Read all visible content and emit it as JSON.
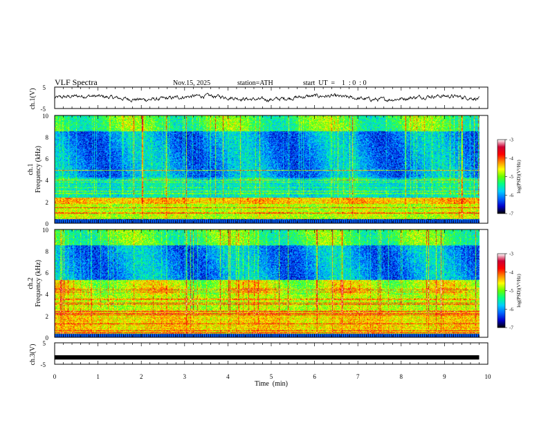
{
  "header": {
    "title": "VLF  Spectra",
    "date": "Nov.15, 2025",
    "station": "station=ATH",
    "start_ut": "start  UT  =    1  : 0  : 0"
  },
  "panels": {
    "ch1": {
      "ylabel": "ch.1(V)",
      "yticks": [
        "5",
        "-5"
      ]
    },
    "spec1": {
      "ylabel_top": "ch.1",
      "ylabel": "Frequency  (kHz)",
      "yticks": [
        "10",
        "8",
        "6",
        "4",
        "2",
        "0"
      ]
    },
    "spec2": {
      "ylabel_top": "ch.2",
      "ylabel": "Frequency  (kHz)",
      "yticks": [
        "10",
        "8",
        "6",
        "4",
        "2",
        "0"
      ]
    },
    "ch3": {
      "ylabel": "ch.3(V)",
      "yticks": [
        "5",
        "-5"
      ]
    }
  },
  "colorbar": {
    "label": "log(PSD)(V²/Hz)",
    "ticks": [
      "-3",
      "-4",
      "-5",
      "-6",
      "-7"
    ],
    "colors": [
      "#000000",
      "#0000cc",
      "#0066ff",
      "#00ccff",
      "#00ff88",
      "#66ff00",
      "#ffff00",
      "#ff8800",
      "#ff0000",
      "#cc0033",
      "#ffffff"
    ]
  },
  "chart_data": [
    {
      "type": "line",
      "name": "ch.1 waveform",
      "ylabel": "ch.1(V)",
      "ylim": [
        -5,
        5
      ],
      "x_range_min": [
        0,
        9.8
      ],
      "typical_value": 0,
      "amplitude": 0.8
    },
    {
      "type": "heatmap",
      "name": "ch.1 spectrogram",
      "ylabel": "Frequency  (kHz)",
      "ylim": [
        0,
        10
      ],
      "x_range_min": [
        0,
        9.8
      ],
      "z_label": "log(PSD)(V²/Hz)",
      "zlim": [
        -7,
        -3
      ],
      "bands_khz": [
        {
          "f0": 0,
          "f1": 0.4,
          "level": -6.5
        },
        {
          "f0": 0.4,
          "f1": 1.8,
          "level": -4.8
        },
        {
          "f0": 1.8,
          "f1": 2.4,
          "level": -4.4
        },
        {
          "f0": 2.4,
          "f1": 4.2,
          "level": -5.6
        },
        {
          "f0": 4.2,
          "f1": 8.5,
          "level": -6.0
        },
        {
          "f0": 8.5,
          "f1": 10,
          "level": -5.2
        }
      ]
    },
    {
      "type": "heatmap",
      "name": "ch.2 spectrogram",
      "ylabel": "Frequency  (kHz)",
      "ylim": [
        0,
        10
      ],
      "x_range_min": [
        0,
        9.8
      ],
      "z_label": "log(PSD)(V²/Hz)",
      "zlim": [
        -7,
        -3
      ],
      "bands_khz": [
        {
          "f0": 0,
          "f1": 0.3,
          "level": -6.5
        },
        {
          "f0": 0.3,
          "f1": 2.5,
          "level": -4.5
        },
        {
          "f0": 2.5,
          "f1": 5.3,
          "level": -4.8
        },
        {
          "f0": 5.3,
          "f1": 8.5,
          "level": -6.0
        },
        {
          "f0": 8.5,
          "f1": 10,
          "level": -5.2
        }
      ]
    },
    {
      "type": "line",
      "name": "ch.3 waveform",
      "ylabel": "ch.3(V)",
      "ylim": [
        -5,
        5
      ],
      "x_range_min": [
        0,
        9.8
      ],
      "typical_value": -1.8,
      "amplitude": 0.1
    }
  ],
  "xaxis": {
    "label": "Time  (min)",
    "ticks": [
      "0",
      "1",
      "2",
      "3",
      "4",
      "5",
      "6",
      "7",
      "8",
      "9",
      "10"
    ],
    "xlim": [
      0,
      10
    ]
  }
}
